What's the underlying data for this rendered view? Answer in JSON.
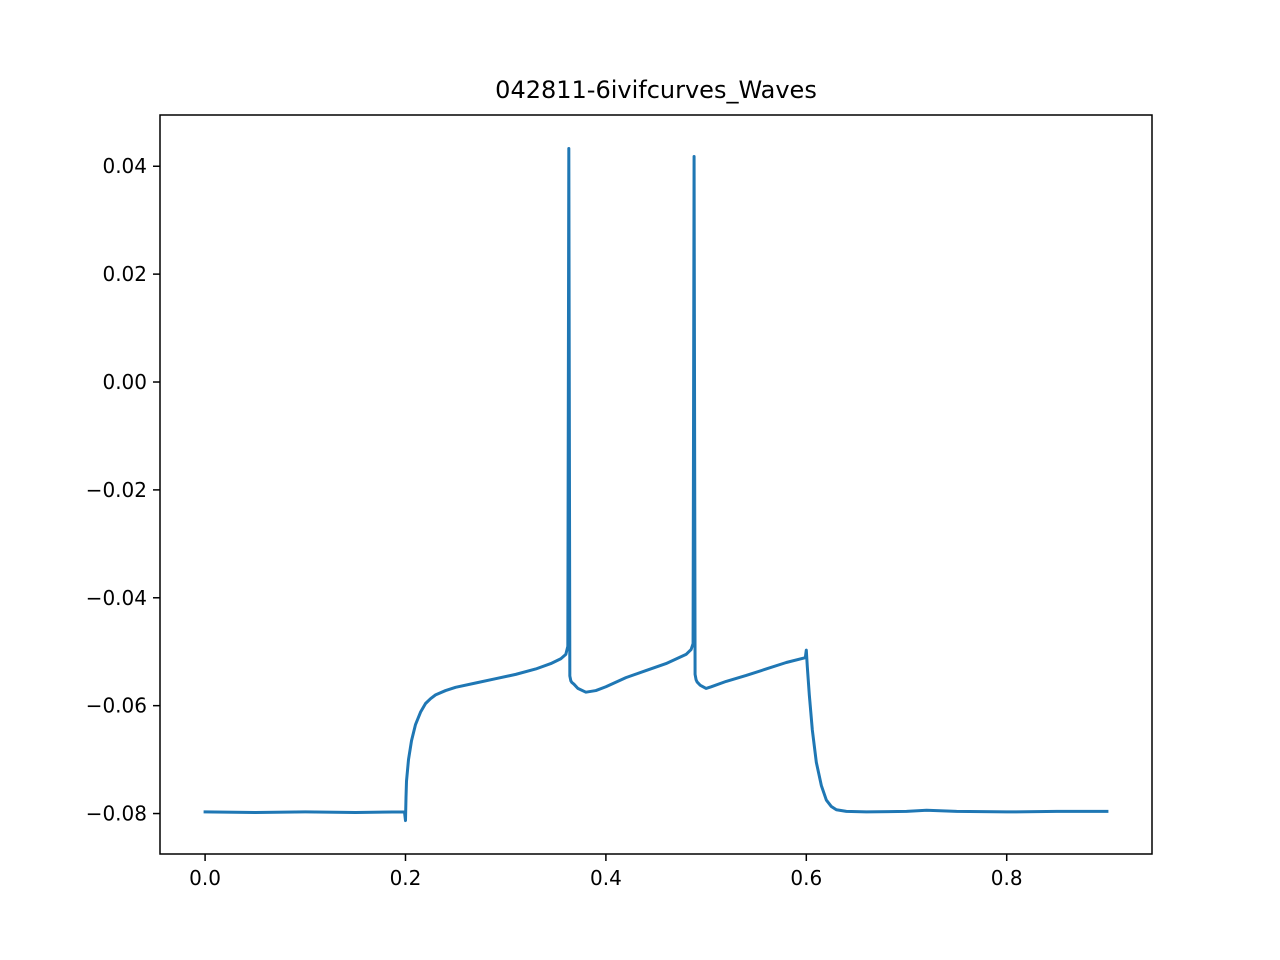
{
  "chart_data": {
    "type": "line",
    "title": "042811-6ivifcurves_Waves",
    "xlabel": "",
    "ylabel": "",
    "xlim": [
      -0.045,
      0.945
    ],
    "ylim": [
      -0.0875,
      0.0495
    ],
    "grid": false,
    "legend": "none",
    "line_color": "#1f77b4",
    "x_ticks": [
      {
        "value": 0.0,
        "label": "0.0"
      },
      {
        "value": 0.2,
        "label": "0.2"
      },
      {
        "value": 0.4,
        "label": "0.4"
      },
      {
        "value": 0.6,
        "label": "0.6"
      },
      {
        "value": 0.8,
        "label": "0.8"
      }
    ],
    "y_ticks": [
      {
        "value": 0.04,
        "label": "0.04"
      },
      {
        "value": 0.02,
        "label": "0.02"
      },
      {
        "value": 0.0,
        "label": "0.00"
      },
      {
        "value": -0.02,
        "label": "−0.02"
      },
      {
        "value": -0.04,
        "label": "−0.04"
      },
      {
        "value": -0.06,
        "label": "−0.06"
      },
      {
        "value": -0.08,
        "label": "−0.08"
      }
    ],
    "series": [
      {
        "x": [
          0.0,
          0.05,
          0.1,
          0.15,
          0.199,
          0.2,
          0.2005,
          0.201,
          0.203,
          0.206,
          0.21,
          0.215,
          0.22,
          0.225,
          0.23,
          0.24,
          0.25,
          0.27,
          0.29,
          0.31,
          0.33,
          0.345,
          0.355,
          0.36,
          0.362,
          0.363,
          0.364,
          0.365,
          0.366,
          0.368,
          0.372,
          0.38,
          0.39,
          0.4,
          0.42,
          0.44,
          0.46,
          0.48,
          0.485,
          0.487,
          0.488,
          0.489,
          0.49,
          0.491,
          0.494,
          0.5,
          0.505,
          0.52,
          0.54,
          0.56,
          0.58,
          0.599,
          0.6,
          0.601,
          0.603,
          0.606,
          0.61,
          0.615,
          0.62,
          0.625,
          0.63,
          0.64,
          0.66,
          0.7,
          0.72,
          0.75,
          0.8,
          0.85,
          0.9
        ],
        "y": [
          -0.0797,
          -0.0798,
          -0.0797,
          -0.0798,
          -0.0797,
          -0.0813,
          -0.077,
          -0.074,
          -0.07,
          -0.0665,
          -0.0635,
          -0.0612,
          -0.0596,
          -0.0587,
          -0.058,
          -0.0572,
          -0.0566,
          -0.0558,
          -0.055,
          -0.0542,
          -0.0532,
          -0.0522,
          -0.0513,
          -0.0505,
          -0.049,
          0.0433,
          -0.0545,
          -0.0554,
          -0.0557,
          -0.056,
          -0.0568,
          -0.0575,
          -0.0572,
          -0.0565,
          -0.0548,
          -0.0535,
          -0.0522,
          -0.0505,
          -0.0496,
          -0.0485,
          0.0418,
          -0.0542,
          -0.0552,
          -0.0556,
          -0.0562,
          -0.0568,
          -0.0565,
          -0.0555,
          -0.0544,
          -0.0532,
          -0.052,
          -0.0511,
          -0.0497,
          -0.0528,
          -0.058,
          -0.0645,
          -0.0705,
          -0.0748,
          -0.0775,
          -0.0787,
          -0.0793,
          -0.0796,
          -0.0797,
          -0.0796,
          -0.0794,
          -0.0796,
          -0.0797,
          -0.0796,
          -0.0796
        ]
      }
    ]
  }
}
